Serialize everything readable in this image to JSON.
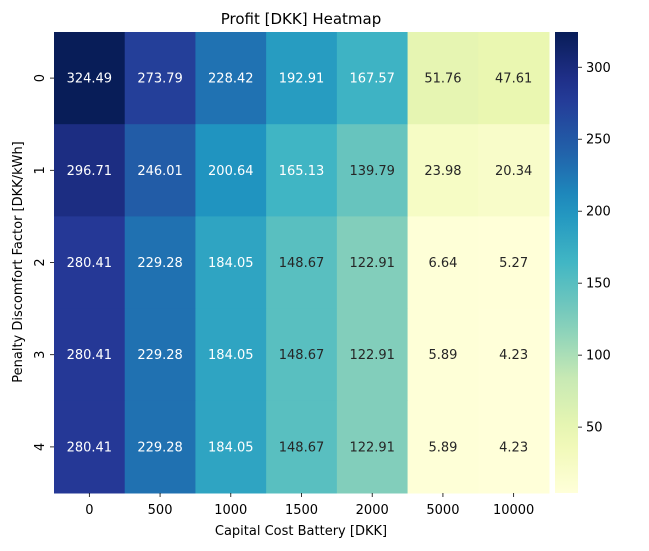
{
  "chart_data": {
    "type": "heatmap",
    "title": "Profit [DKK] Heatmap",
    "xlabel": "Capital Cost Battery [DKK]",
    "ylabel": "Penalty Discomfort Factor [DKK/kWh]",
    "x_categories": [
      "0",
      "500",
      "1000",
      "1500",
      "2000",
      "5000",
      "10000"
    ],
    "y_categories": [
      "0",
      "1",
      "2",
      "3",
      "4"
    ],
    "values": [
      [
        324.49,
        273.79,
        228.42,
        192.91,
        167.57,
        51.76,
        47.61
      ],
      [
        296.71,
        246.01,
        200.64,
        165.13,
        139.79,
        23.98,
        20.34
      ],
      [
        280.41,
        229.28,
        184.05,
        148.67,
        122.91,
        6.64,
        5.27
      ],
      [
        280.41,
        229.28,
        184.05,
        148.67,
        122.91,
        5.89,
        4.23
      ],
      [
        280.41,
        229.28,
        184.05,
        148.67,
        122.91,
        5.89,
        4.23
      ]
    ],
    "colormap": "YlGnBu",
    "colorbar": {
      "ticks": [
        50,
        100,
        150,
        200,
        250,
        300
      ],
      "range": [
        4.23,
        324.49
      ]
    },
    "annotations": true,
    "grid": false
  }
}
